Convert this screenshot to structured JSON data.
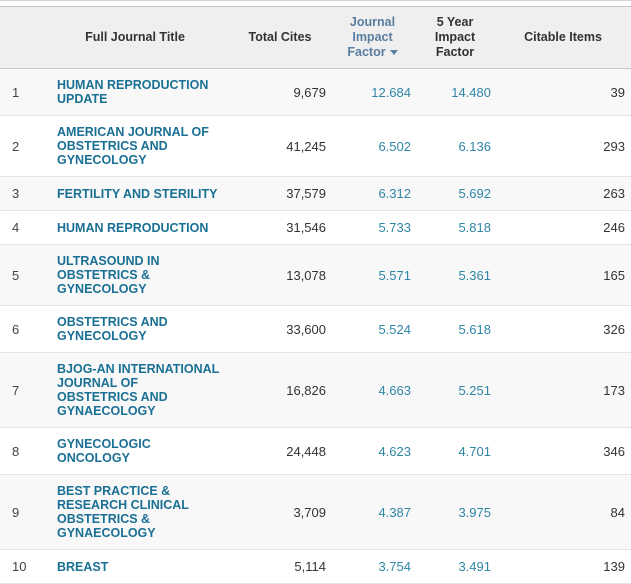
{
  "table": {
    "columns": [
      {
        "label": ""
      },
      {
        "label": "Full Journal Title"
      },
      {
        "label": "Total Cites"
      },
      {
        "label": "Journal Impact Factor",
        "sort": "descending"
      },
      {
        "label": "5 Year Impact Factor"
      },
      {
        "label": "Citable Items"
      }
    ],
    "rows": [
      {
        "rank": "1",
        "title": "HUMAN REPRODUCTION UPDATE",
        "total_cites": "9,679",
        "impact_factor": "12.684",
        "five_year_impact_factor": "14.480",
        "citable_items": "39"
      },
      {
        "rank": "2",
        "title": "AMERICAN JOURNAL OF OBSTETRICS AND GYNECOLOGY",
        "total_cites": "41,245",
        "impact_factor": "6.502",
        "five_year_impact_factor": "6.136",
        "citable_items": "293"
      },
      {
        "rank": "3",
        "title": "FERTILITY AND STERILITY",
        "total_cites": "37,579",
        "impact_factor": "6.312",
        "five_year_impact_factor": "5.692",
        "citable_items": "263"
      },
      {
        "rank": "4",
        "title": "HUMAN REPRODUCTION",
        "total_cites": "31,546",
        "impact_factor": "5.733",
        "five_year_impact_factor": "5.818",
        "citable_items": "246"
      },
      {
        "rank": "5",
        "title": "ULTRASOUND IN OBSTETRICS & GYNECOLOGY",
        "total_cites": "13,078",
        "impact_factor": "5.571",
        "five_year_impact_factor": "5.361",
        "citable_items": "165"
      },
      {
        "rank": "6",
        "title": "OBSTETRICS AND GYNECOLOGY",
        "total_cites": "33,600",
        "impact_factor": "5.524",
        "five_year_impact_factor": "5.618",
        "citable_items": "326"
      },
      {
        "rank": "7",
        "title": "BJOG-AN INTERNATIONAL JOURNAL OF OBSTETRICS AND GYNAECOLOGY",
        "total_cites": "16,826",
        "impact_factor": "4.663",
        "five_year_impact_factor": "5.251",
        "citable_items": "173"
      },
      {
        "rank": "8",
        "title": "GYNECOLOGIC ONCOLOGY",
        "total_cites": "24,448",
        "impact_factor": "4.623",
        "five_year_impact_factor": "4.701",
        "citable_items": "346"
      },
      {
        "rank": "9",
        "title": "BEST PRACTICE & RESEARCH CLINICAL OBSTETRICS & GYNAECOLOGY",
        "total_cites": "3,709",
        "impact_factor": "4.387",
        "five_year_impact_factor": "3.975",
        "citable_items": "84"
      },
      {
        "rank": "10",
        "title": "BREAST",
        "total_cites": "5,114",
        "impact_factor": "3.754",
        "five_year_impact_factor": "3.491",
        "citable_items": "139"
      }
    ]
  },
  "colors": {
    "journal_title_link": "#1a7094",
    "impact_factor_value": "#2f86a5",
    "sorted_column_header": "#5b7da0",
    "header_background": "#efefef",
    "body_text": "#333333",
    "row_stripe": "#f8f8f8"
  }
}
